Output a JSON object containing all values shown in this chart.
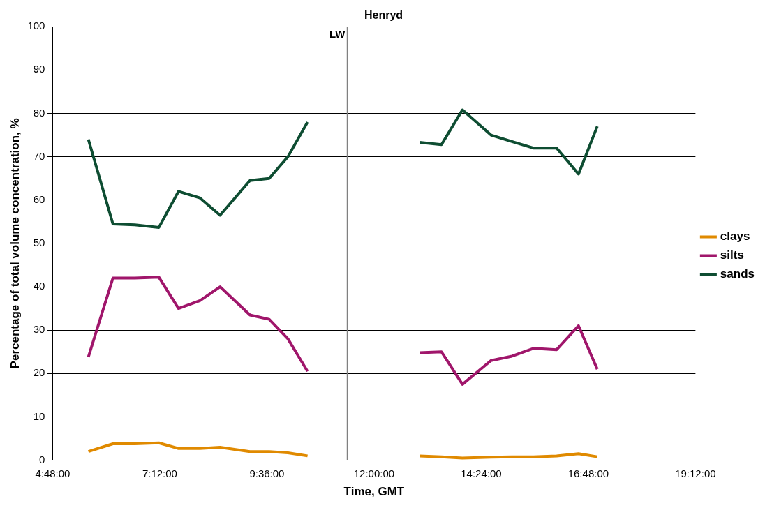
{
  "chart_data": {
    "type": "line",
    "title": "Henryd",
    "xlabel": "Time, GMT",
    "ylabel": "Percentage of total volume concentration, %",
    "x": [
      5.6,
      6.15,
      6.64,
      7.18,
      7.62,
      8.1,
      8.55,
      9.22,
      9.65,
      10.07,
      10.51,
      12.0,
      13.02,
      13.51,
      13.98,
      14.62,
      15.09,
      15.57,
      16.09,
      16.58,
      17.0
    ],
    "series": [
      {
        "name": "clays",
        "color": "#e08a00",
        "values": [
          2,
          3.8,
          3.8,
          4,
          2.7,
          2.7,
          3,
          2,
          2,
          1.7,
          1,
          null,
          1,
          0.8,
          0.5,
          0.7,
          0.8,
          0.8,
          1,
          1.5,
          0.8
        ]
      },
      {
        "name": "silts",
        "color": "#a0166b",
        "values": [
          23.8,
          42,
          42,
          42.2,
          35,
          36.8,
          40,
          33.5,
          32.5,
          28,
          20.5,
          null,
          24.8,
          25,
          17.5,
          23,
          24,
          25.8,
          25.5,
          31,
          21
        ]
      },
      {
        "name": "sands",
        "color": "#0e4d32",
        "values": [
          74,
          54.5,
          54.3,
          53.7,
          62,
          60.5,
          56.5,
          64.5,
          65,
          70,
          78,
          null,
          73.3,
          72.8,
          80.8,
          75,
          73.5,
          72,
          72,
          66,
          77
        ]
      }
    ],
    "xlim": [
      4.8,
      19.2
    ],
    "xticks": [
      {
        "value": 4.8,
        "label": "4:48:00"
      },
      {
        "value": 7.2,
        "label": "7:12:00"
      },
      {
        "value": 9.6,
        "label": "9:36:00"
      },
      {
        "value": 12,
        "label": "12:00:00"
      },
      {
        "value": 14.4,
        "label": "14:24:00"
      },
      {
        "value": 16.8,
        "label": "16:48:00"
      },
      {
        "value": 19.2,
        "label": "19:12:00"
      }
    ],
    "ylim": [
      0,
      100
    ],
    "yticks": [
      0,
      10,
      20,
      30,
      40,
      50,
      60,
      70,
      80,
      90,
      100
    ],
    "ref_lines": [
      {
        "axis": "x",
        "value": 11.4,
        "label": "LW",
        "color": "#808080"
      }
    ],
    "grid": "y",
    "legend": "right",
    "marker": "none",
    "line_style": "solid"
  }
}
